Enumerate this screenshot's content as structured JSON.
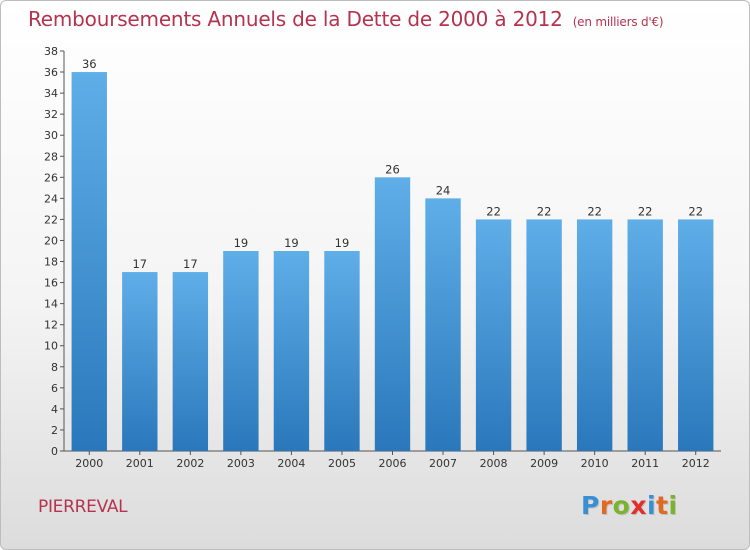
{
  "header": {
    "title": "Remboursements Annuels de la Dette de 2000 à 2012",
    "subtitle": "(en milliers d'€)"
  },
  "footer": {
    "commune": "PIERREVAL",
    "logo": [
      "P",
      "r",
      "o",
      "x",
      "i",
      "t",
      "i"
    ],
    "logo_colors": [
      "#3a8fd4",
      "#e06a1f",
      "#7ab32e",
      "#e0302a",
      "#3a8fd4",
      "#e06a1f",
      "#7ab32e"
    ]
  },
  "colors": {
    "bar_top": "#5faee8",
    "bar_bottom": "#2a78bb",
    "title": "#b5334f"
  },
  "chart_data": {
    "type": "bar",
    "title": "Remboursements Annuels de la Dette de 2000 à 2012",
    "subtitle": "(en milliers d'€)",
    "categories": [
      "2000",
      "2001",
      "2002",
      "2003",
      "2004",
      "2005",
      "2006",
      "2007",
      "2008",
      "2009",
      "2010",
      "2011",
      "2012"
    ],
    "values": [
      36,
      17,
      17,
      19,
      19,
      19,
      26,
      24,
      22,
      22,
      22,
      22,
      22
    ],
    "data_labels": [
      "36",
      "17",
      "17",
      "19",
      "19",
      "19",
      "26",
      "24",
      "22",
      "22",
      "22",
      "22",
      "22"
    ],
    "yticks": [
      "0",
      "2",
      "4",
      "6",
      "8",
      "10",
      "12",
      "14",
      "16",
      "18",
      "20",
      "22",
      "24",
      "26",
      "28",
      "30",
      "32",
      "34",
      "36",
      "38"
    ],
    "ylim": [
      0,
      38
    ],
    "grid": false,
    "legend": false,
    "xlabel": "",
    "ylabel": ""
  }
}
